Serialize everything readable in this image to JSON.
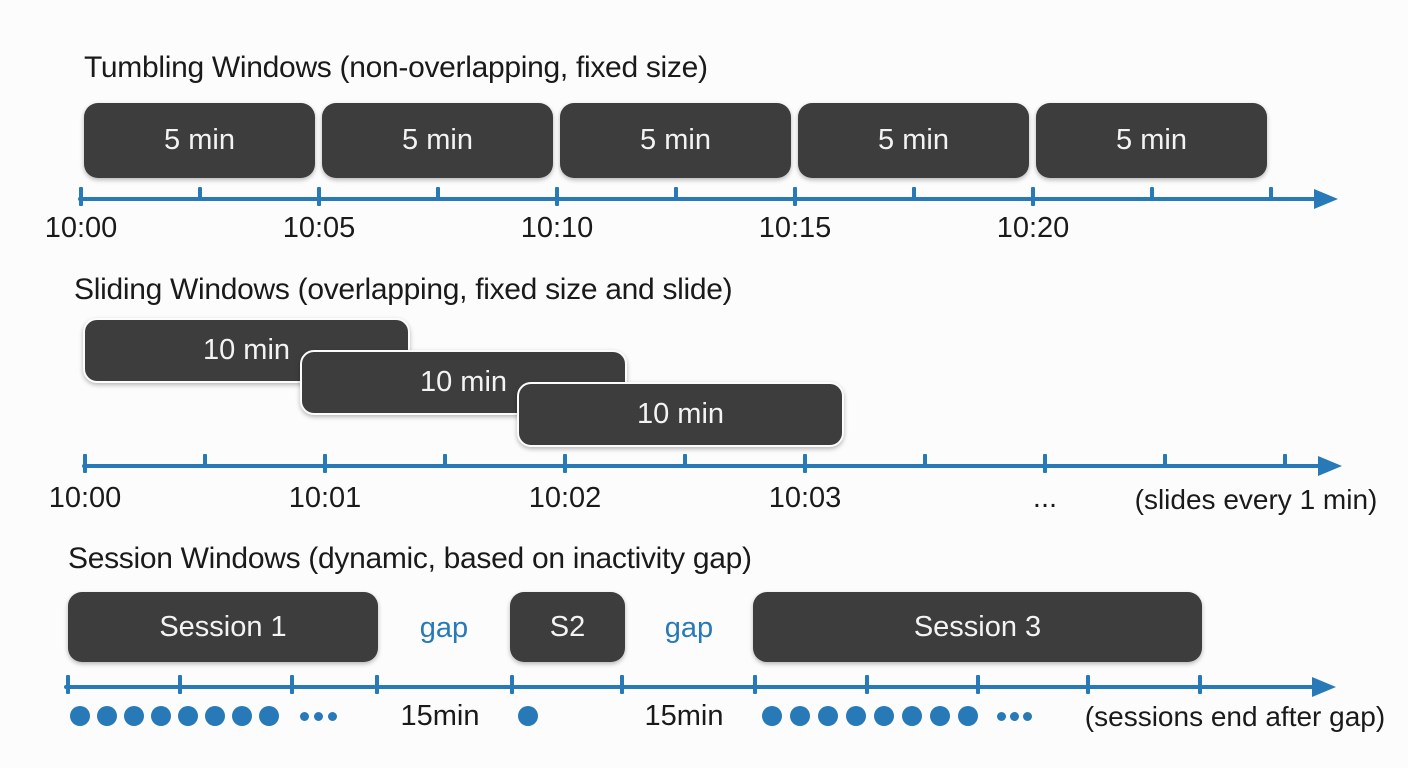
{
  "colors": {
    "background": "#fcfcfc",
    "accent_blue": "#2779b8",
    "box_dark": "#3d3d3d",
    "box_text": "#f3f3f3",
    "text": "#1a1a1a"
  },
  "tumbling": {
    "title": "Tumbling Windows (non-overlapping, fixed size)",
    "windows": [
      "5 min",
      "5 min",
      "5 min",
      "5 min",
      "5 min"
    ],
    "axis_labels": [
      "10:00",
      "10:05",
      "10:10",
      "10:15",
      "10:20"
    ]
  },
  "sliding": {
    "title": "Sliding Windows (overlapping, fixed size and slide)",
    "windows": [
      "10 min",
      "10 min",
      "10 min"
    ],
    "axis_labels": [
      "10:00",
      "10:01",
      "10:02",
      "10:03",
      "..."
    ],
    "note": "(slides every 1 min)"
  },
  "session": {
    "title": "Session Windows (dynamic, based on inactivity gap)",
    "windows": [
      "Session 1",
      "S2",
      "Session 3"
    ],
    "gap_labels": [
      "gap",
      "gap"
    ],
    "event_annotations": [
      "15min",
      "15min"
    ],
    "note": "(sessions end after gap)"
  }
}
